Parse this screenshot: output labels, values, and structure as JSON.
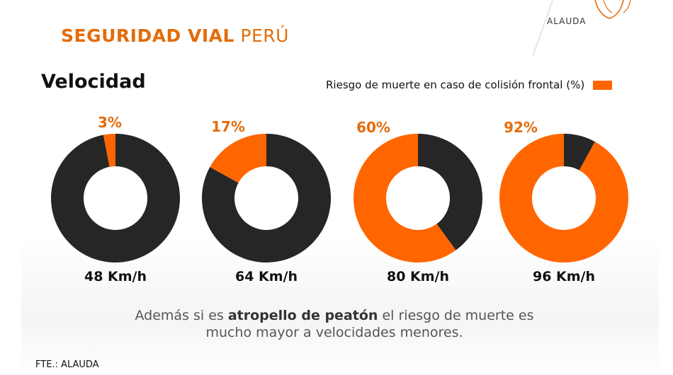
{
  "header": {
    "title_bold": "SEGURIDAD VIAL",
    "title_rest": "PERÚ",
    "logo_text": "ALAUDA"
  },
  "section": {
    "subtitle": "Velocidad"
  },
  "legend": {
    "label": "Riesgo de muerte en caso de colisión frontal (%)"
  },
  "colors": {
    "risk": "#FF6600",
    "rest": "#262626",
    "accent": "#E46C0A"
  },
  "chart_data": {
    "type": "pie",
    "variant": "donut",
    "title": "Velocidad",
    "legend": [
      "Riesgo de muerte en caso de colisión frontal (%)"
    ],
    "categories": [
      "48 Km/h",
      "64 Km/h",
      "80 Km/h",
      "96 Km/h"
    ],
    "values": [
      3,
      17,
      60,
      92
    ],
    "value_labels": [
      "3%",
      "17%",
      "60%",
      "92%"
    ]
  },
  "note": {
    "part1": "Además si es ",
    "bold": "atropello de peatón",
    "part2": " el riesgo de muerte es mucho mayor a velocidades menores."
  },
  "source": "FTE.: ALAUDA"
}
